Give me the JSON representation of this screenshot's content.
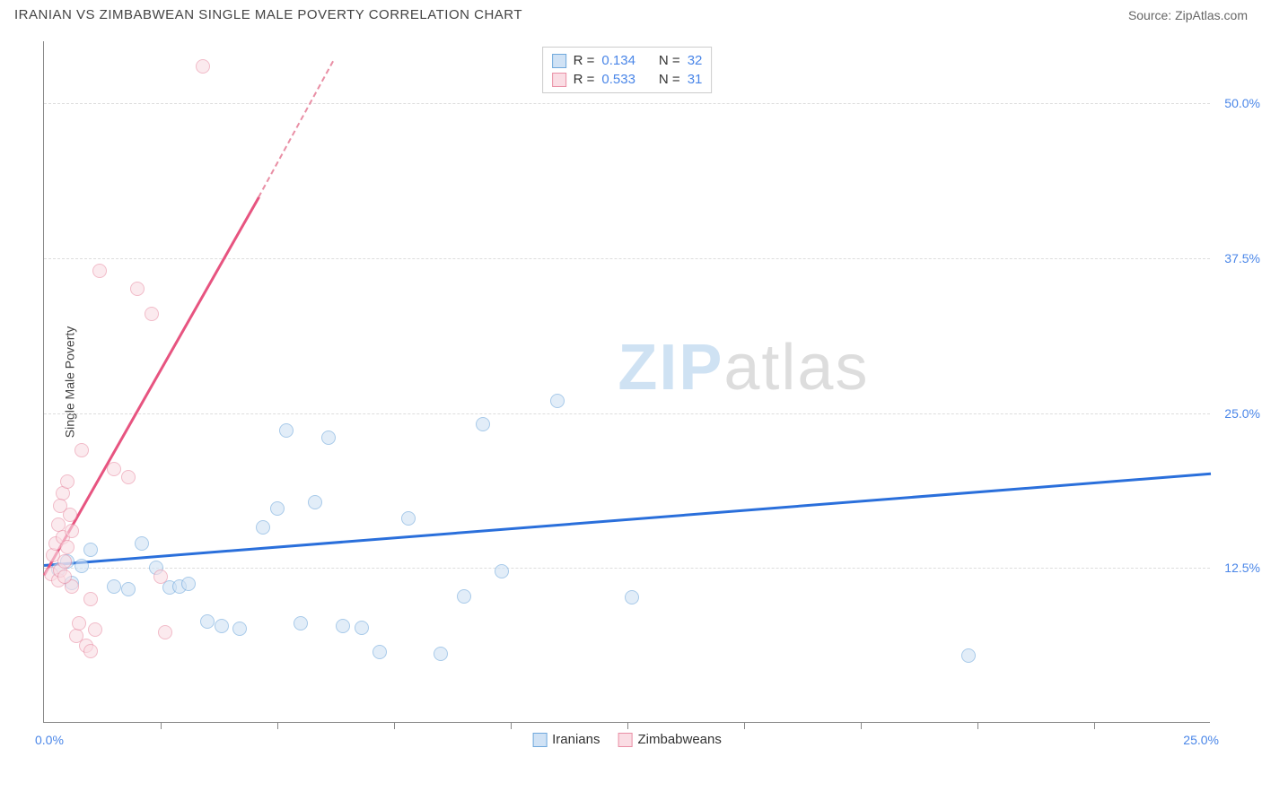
{
  "header": {
    "title": "IRANIAN VS ZIMBABWEAN SINGLE MALE POVERTY CORRELATION CHART",
    "source": "Source: ZipAtlas.com"
  },
  "chart": {
    "type": "scatter",
    "y_axis_title": "Single Male Poverty",
    "xlim": [
      0,
      25
    ],
    "ylim": [
      0,
      55
    ],
    "x_label_min": "0.0%",
    "x_label_max": "25.0%",
    "y_ticks": [
      12.5,
      25.0,
      37.5,
      50.0
    ],
    "y_tick_labels": [
      "12.5%",
      "25.0%",
      "37.5%",
      "50.0%"
    ],
    "x_tick_positions": [
      2.5,
      5.0,
      7.5,
      10.0,
      12.5,
      15.0,
      17.5,
      20.0,
      22.5
    ],
    "background_color": "#ffffff",
    "grid_color": "#dddddd",
    "axis_color": "#888888",
    "marker_radius": 8,
    "marker_stroke_width": 1.5,
    "series": [
      {
        "name": "Iranians",
        "fill_color": "#d0e2f5",
        "stroke_color": "#6fa8dc",
        "fill_opacity": 0.6,
        "R": "0.134",
        "N": "32",
        "trend": {
          "x1": 0,
          "y1": 12.8,
          "x2": 25,
          "y2": 20.2,
          "color": "#2a6fdb",
          "width": 2.5
        },
        "points": [
          [
            0.3,
            12.4
          ],
          [
            0.5,
            13.0
          ],
          [
            0.6,
            11.3
          ],
          [
            0.8,
            12.7
          ],
          [
            1.0,
            14.0
          ],
          [
            1.5,
            11.0
          ],
          [
            1.8,
            10.8
          ],
          [
            2.1,
            14.5
          ],
          [
            2.4,
            12.5
          ],
          [
            2.7,
            10.9
          ],
          [
            2.9,
            11.0
          ],
          [
            3.1,
            11.2
          ],
          [
            3.5,
            8.2
          ],
          [
            3.8,
            7.8
          ],
          [
            4.2,
            7.6
          ],
          [
            4.7,
            15.8
          ],
          [
            5.0,
            17.3
          ],
          [
            5.2,
            23.6
          ],
          [
            5.5,
            8.0
          ],
          [
            5.8,
            17.8
          ],
          [
            6.1,
            23.0
          ],
          [
            6.4,
            7.8
          ],
          [
            6.8,
            7.7
          ],
          [
            7.2,
            5.7
          ],
          [
            7.8,
            16.5
          ],
          [
            8.5,
            5.6
          ],
          [
            9.0,
            10.2
          ],
          [
            9.4,
            24.1
          ],
          [
            9.8,
            12.2
          ],
          [
            12.6,
            10.1
          ],
          [
            19.8,
            5.4
          ],
          [
            11.0,
            26.0
          ]
        ]
      },
      {
        "name": "Zimbabweans",
        "fill_color": "#fadde4",
        "stroke_color": "#e98fa5",
        "fill_opacity": 0.6,
        "R": "0.533",
        "N": "31",
        "trend": {
          "x1": 0,
          "y1": 12.0,
          "x2": 4.6,
          "y2": 42.5,
          "color": "#e75480",
          "width": 2.5
        },
        "trend_dashed": {
          "x1": 4.6,
          "y1": 42.5,
          "x2": 6.2,
          "y2": 53.5,
          "color": "#e98fa5",
          "width": 2
        },
        "points": [
          [
            0.15,
            12.0
          ],
          [
            0.2,
            13.5
          ],
          [
            0.25,
            14.5
          ],
          [
            0.3,
            11.5
          ],
          [
            0.3,
            16.0
          ],
          [
            0.35,
            12.3
          ],
          [
            0.4,
            15.0
          ],
          [
            0.4,
            18.5
          ],
          [
            0.45,
            13.0
          ],
          [
            0.5,
            19.5
          ],
          [
            0.5,
            14.2
          ],
          [
            0.55,
            16.8
          ],
          [
            0.6,
            11.0
          ],
          [
            0.7,
            7.0
          ],
          [
            0.75,
            8.0
          ],
          [
            0.8,
            22.0
          ],
          [
            0.9,
            6.2
          ],
          [
            1.0,
            5.8
          ],
          [
            1.0,
            10.0
          ],
          [
            1.1,
            7.5
          ],
          [
            1.2,
            36.5
          ],
          [
            1.5,
            20.5
          ],
          [
            1.8,
            19.8
          ],
          [
            2.0,
            35.0
          ],
          [
            2.3,
            33.0
          ],
          [
            2.5,
            11.8
          ],
          [
            2.6,
            7.3
          ],
          [
            3.4,
            53.0
          ],
          [
            0.35,
            17.5
          ],
          [
            0.6,
            15.5
          ],
          [
            0.45,
            11.8
          ]
        ]
      }
    ],
    "watermark": {
      "text_a": "ZIP",
      "text_b": "atlas"
    }
  },
  "legend_top": {
    "rows": [
      {
        "swatch_fill": "#d0e2f5",
        "swatch_stroke": "#6fa8dc",
        "r_label": "R =",
        "r_value": "0.134",
        "n_label": "N =",
        "n_value": "32"
      },
      {
        "swatch_fill": "#fadde4",
        "swatch_stroke": "#e98fa5",
        "r_label": "R =",
        "r_value": "0.533",
        "n_label": "N =",
        "n_value": "31"
      }
    ]
  },
  "legend_bottom": {
    "items": [
      {
        "swatch_fill": "#d0e2f5",
        "swatch_stroke": "#6fa8dc",
        "label": "Iranians"
      },
      {
        "swatch_fill": "#fadde4",
        "swatch_stroke": "#e98fa5",
        "label": "Zimbabweans"
      }
    ]
  }
}
